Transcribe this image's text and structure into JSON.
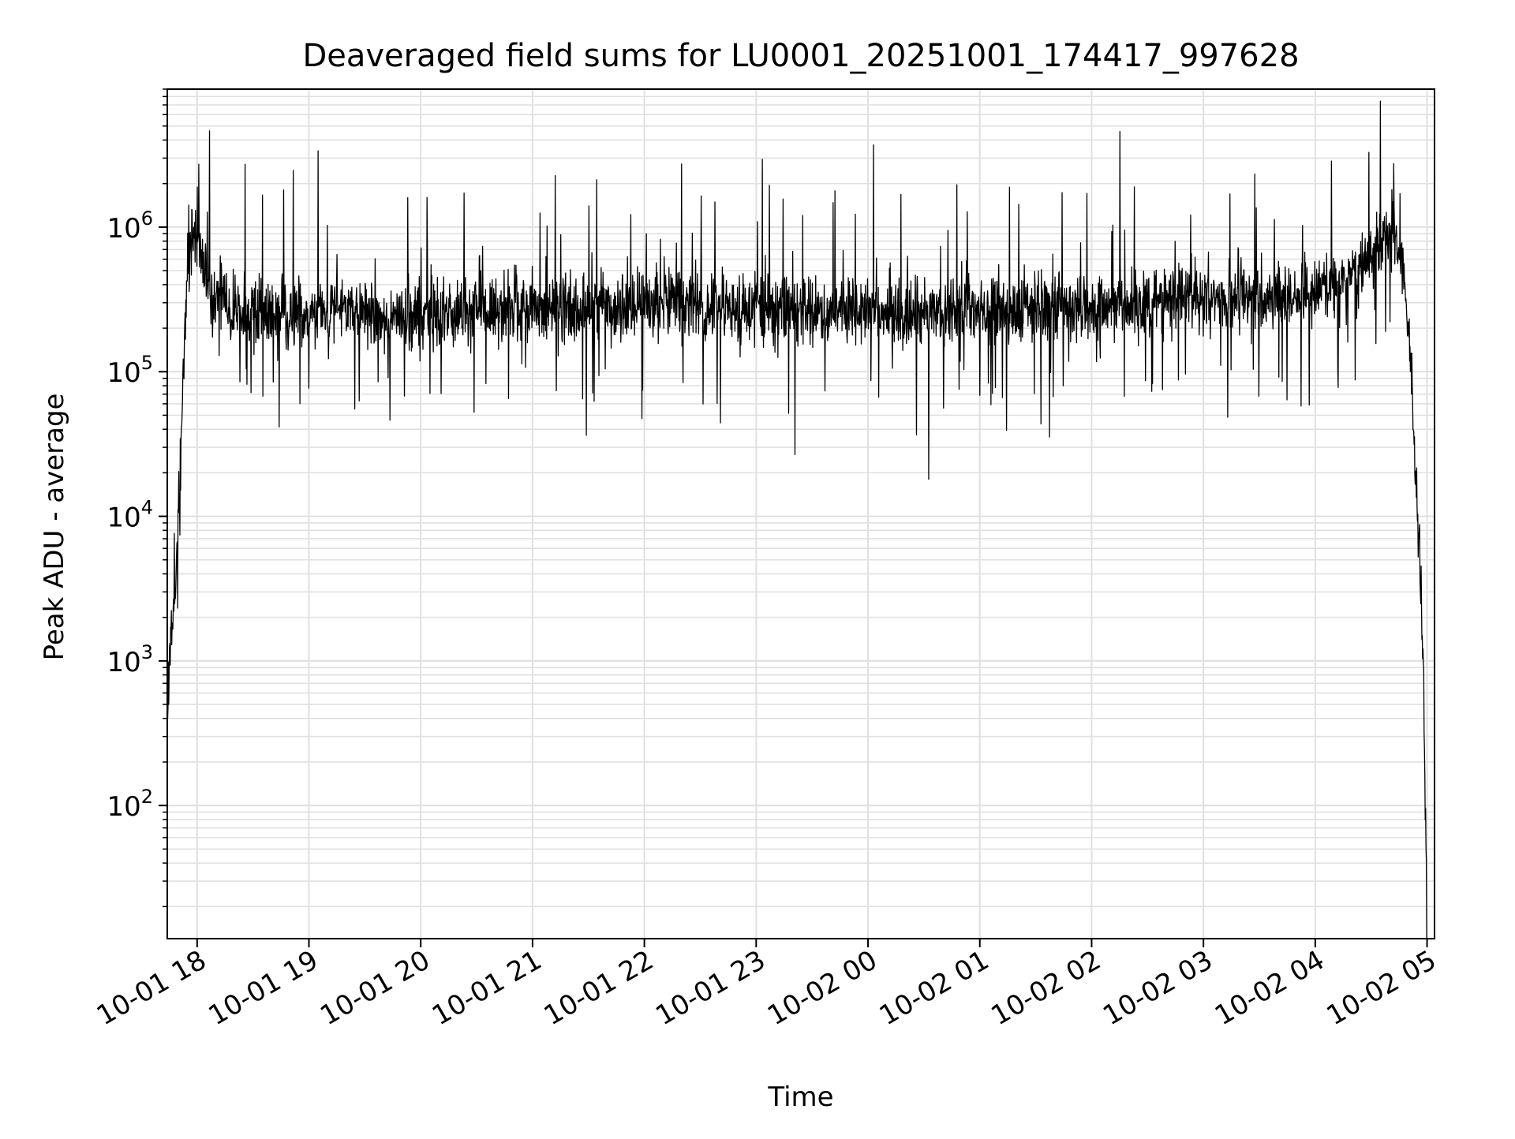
{
  "chart_data": {
    "type": "line",
    "title": "Deaveraged field sums for LU0001_20251001_174417_997628",
    "xlabel": "Time",
    "ylabel": "Peak ADU - average",
    "yscale": "log",
    "ylim": [
      12,
      9000000
    ],
    "xlim": [
      "2025-10-01 17:44",
      "2025-10-02 05:04"
    ],
    "grid": true,
    "line_color": "#000000",
    "grid_color": "#e0e0e0",
    "x_ticks": [
      "10-01 18",
      "10-01 19",
      "10-01 20",
      "10-01 21",
      "10-01 22",
      "10-01 23",
      "10-02 00",
      "10-02 01",
      "10-02 02",
      "10-02 03",
      "10-02 04",
      "10-02 05"
    ],
    "y_ticks": [
      {
        "value": 100,
        "base": "10",
        "exp": "2"
      },
      {
        "value": 1000,
        "base": "10",
        "exp": "3"
      },
      {
        "value": 10000,
        "base": "10",
        "exp": "4"
      },
      {
        "value": 100000,
        "base": "10",
        "exp": "5"
      },
      {
        "value": 1000000,
        "base": "10",
        "exp": "6"
      }
    ],
    "series": [
      {
        "x": [
          "2025-10-01 17:44",
          "2025-10-01 17:46",
          "2025-10-01 17:48",
          "2025-10-01 17:50",
          "2025-10-01 17:52",
          "2025-10-01 17:54",
          "2025-10-01 17:56",
          "2025-10-01 17:58",
          "2025-10-01 18:00",
          "2025-10-01 18:02",
          "2025-10-01 18:05",
          "2025-10-01 18:08",
          "2025-10-01 18:12",
          "2025-10-01 18:16",
          "2025-10-01 18:20",
          "2025-10-01 18:30",
          "2025-10-01 18:45",
          "2025-10-01 19:00",
          "2025-10-01 19:30",
          "2025-10-01 20:00",
          "2025-10-01 20:30",
          "2025-10-01 21:00",
          "2025-10-01 21:30",
          "2025-10-01 22:00",
          "2025-10-01 22:15",
          "2025-10-01 22:30",
          "2025-10-01 23:00",
          "2025-10-01 23:30",
          "2025-10-02 00:00",
          "2025-10-02 00:30",
          "2025-10-02 01:00",
          "2025-10-02 01:30",
          "2025-10-02 02:00",
          "2025-10-02 02:30",
          "2025-10-02 03:00",
          "2025-10-02 03:30",
          "2025-10-02 04:00",
          "2025-10-02 04:20",
          "2025-10-02 04:35",
          "2025-10-02 04:42",
          "2025-10-02 04:46",
          "2025-10-02 04:49",
          "2025-10-02 04:52",
          "2025-10-02 04:54",
          "2025-10-02 04:56",
          "2025-10-02 04:58",
          "2025-10-02 05:00"
        ],
        "y": [
          500,
          1500,
          2000,
          12000,
          50000,
          300000,
          700000,
          900000,
          800000,
          700000,
          500000,
          300000,
          350000,
          280000,
          250000,
          260000,
          240000,
          250000,
          260000,
          250000,
          270000,
          280000,
          270000,
          300000,
          320000,
          280000,
          270000,
          260000,
          260000,
          250000,
          260000,
          270000,
          280000,
          300000,
          320000,
          330000,
          350000,
          450000,
          800000,
          900000,
          700000,
          300000,
          80000,
          20000,
          5000,
          1000,
          12
        ]
      }
    ]
  }
}
